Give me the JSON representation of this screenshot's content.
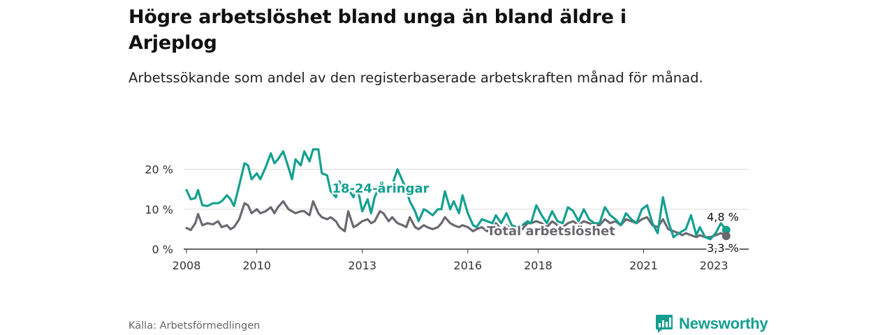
{
  "title": "Högre arbetslöshet bland unga än bland äldre i Arjeplog",
  "subtitle": "Arbetssökande som andel av den registerbaserade arbetskraften månad för månad.",
  "source": "Källa: Arbetsförmedlingen",
  "brand": "Newsworthy",
  "colors": {
    "youth": "#14a090",
    "total": "#6b6870",
    "grid": "#d9d9d9",
    "axis": "#333333",
    "brand": "#139e8f"
  },
  "chart_data": {
    "type": "line",
    "title": "Högre arbetslöshet bland unga än bland äldre i Arjeplog",
    "xlabel": "",
    "ylabel": "",
    "xlim": [
      2007.92,
      2023.99
    ],
    "ylim": [
      0,
      25
    ],
    "y_ticks": [
      0,
      10,
      20
    ],
    "y_tick_labels": [
      "0 %",
      "10 %",
      "20 %"
    ],
    "x_ticks": [
      2008,
      2010,
      2013,
      2016,
      2018,
      2021,
      2023
    ],
    "x_tick_labels": [
      "2008",
      "2010",
      "2013",
      "2016",
      "2018",
      "2021",
      "2023"
    ],
    "grid": true,
    "series": [
      {
        "name": "18-24-åringar",
        "label": "18-24-åringar",
        "color": "#14a090",
        "end_label": "4,8 %",
        "x": [
          2008.0,
          2008.12,
          2008.25,
          2008.33,
          2008.45,
          2008.6,
          2008.75,
          2008.9,
          2009.0,
          2009.15,
          2009.25,
          2009.35,
          2009.5,
          2009.65,
          2009.75,
          2009.85,
          2010.0,
          2010.1,
          2010.25,
          2010.4,
          2010.5,
          2010.6,
          2010.75,
          2010.9,
          2011.0,
          2011.1,
          2011.25,
          2011.35,
          2011.5,
          2011.6,
          2011.75,
          2011.85,
          2012.0,
          2012.1,
          2012.25,
          2012.35,
          2012.5,
          2012.6,
          2012.75,
          2012.85,
          2013.0,
          2013.15,
          2013.25,
          2013.35,
          2013.5,
          2013.6,
          2013.75,
          2013.85,
          2014.0,
          2014.15,
          2014.25,
          2014.35,
          2014.5,
          2014.6,
          2014.75,
          2014.85,
          2015.0,
          2015.15,
          2015.25,
          2015.35,
          2015.5,
          2015.6,
          2015.75,
          2015.85,
          2016.0,
          2016.15,
          2016.25,
          2016.4,
          2016.55,
          2016.7,
          2016.8,
          2016.95,
          2017.1,
          2017.25,
          2017.4,
          2017.55,
          2017.7,
          2017.8,
          2017.95,
          2018.1,
          2018.25,
          2018.4,
          2018.55,
          2018.7,
          2018.85,
          2019.0,
          2019.15,
          2019.3,
          2019.45,
          2019.6,
          2019.75,
          2019.9,
          2020.05,
          2020.2,
          2020.35,
          2020.5,
          2020.65,
          2020.8,
          2020.95,
          2021.1,
          2021.25,
          2021.4,
          2021.55,
          2021.7,
          2021.85,
          2022.0,
          2022.1,
          2022.2,
          2022.35,
          2022.5,
          2022.6,
          2022.75,
          2022.9,
          2023.05,
          2023.2,
          2023.35
        ],
        "y": [
          14.8,
          12.5,
          12.8,
          14.8,
          11.0,
          10.8,
          11.5,
          11.5,
          12.0,
          13.5,
          12.5,
          10.8,
          16.0,
          21.5,
          21.0,
          17.5,
          19.0,
          17.5,
          20.5,
          24.0,
          21.5,
          22.5,
          24.5,
          20.5,
          17.5,
          22.5,
          21.0,
          24.5,
          22.0,
          25.0,
          25.0,
          19.0,
          18.5,
          14.5,
          13.0,
          17.0,
          14.0,
          15.0,
          13.0,
          16.0,
          9.5,
          12.5,
          9.0,
          13.0,
          16.0,
          15.5,
          14.0,
          16.0,
          20.0,
          17.0,
          15.0,
          12.0,
          9.5,
          7.0,
          10.0,
          9.5,
          8.5,
          10.0,
          10.0,
          14.5,
          10.0,
          12.0,
          9.0,
          13.5,
          9.0,
          6.0,
          5.5,
          7.5,
          7.0,
          6.5,
          8.5,
          6.5,
          9.0,
          6.0,
          5.5,
          6.0,
          7.0,
          6.5,
          11.0,
          8.5,
          6.5,
          9.5,
          7.0,
          6.5,
          10.5,
          9.5,
          7.0,
          10.0,
          7.5,
          6.5,
          6.5,
          10.5,
          8.5,
          7.5,
          6.0,
          9.0,
          7.5,
          6.5,
          10.0,
          11.0,
          6.5,
          4.0,
          13.0,
          7.0,
          3.0,
          4.0,
          4.5,
          5.0,
          8.5,
          3.5,
          5.5,
          3.0,
          2.5,
          4.0,
          6.5,
          4.8
        ]
      },
      {
        "name": "Total arbetslöshet",
        "label": "Total arbetslöshet",
        "color": "#6b6870",
        "end_label": "3,3 %",
        "x": [
          2008.0,
          2008.12,
          2008.25,
          2008.33,
          2008.45,
          2008.6,
          2008.75,
          2008.9,
          2009.0,
          2009.15,
          2009.25,
          2009.35,
          2009.5,
          2009.65,
          2009.75,
          2009.85,
          2010.0,
          2010.1,
          2010.25,
          2010.4,
          2010.5,
          2010.6,
          2010.75,
          2010.9,
          2011.0,
          2011.1,
          2011.25,
          2011.35,
          2011.5,
          2011.6,
          2011.75,
          2011.85,
          2012.0,
          2012.1,
          2012.25,
          2012.35,
          2012.5,
          2012.6,
          2012.75,
          2012.85,
          2013.0,
          2013.15,
          2013.25,
          2013.35,
          2013.5,
          2013.6,
          2013.75,
          2013.85,
          2014.0,
          2014.15,
          2014.25,
          2014.35,
          2014.5,
          2014.6,
          2014.75,
          2014.85,
          2015.0,
          2015.15,
          2015.25,
          2015.35,
          2015.5,
          2015.6,
          2015.75,
          2015.85,
          2016.0,
          2016.15,
          2016.25,
          2016.4,
          2016.55,
          2016.7,
          2016.8,
          2016.95,
          2017.1,
          2017.25,
          2017.4,
          2017.55,
          2017.7,
          2017.8,
          2017.95,
          2018.1,
          2018.25,
          2018.4,
          2018.55,
          2018.7,
          2018.85,
          2019.0,
          2019.15,
          2019.3,
          2019.45,
          2019.6,
          2019.75,
          2019.9,
          2020.05,
          2020.2,
          2020.35,
          2020.5,
          2020.65,
          2020.8,
          2020.95,
          2021.1,
          2021.25,
          2021.4,
          2021.55,
          2021.7,
          2021.85,
          2022.0,
          2022.1,
          2022.2,
          2022.35,
          2022.5,
          2022.6,
          2022.75,
          2022.9,
          2023.05,
          2023.2,
          2023.35
        ],
        "y": [
          5.3,
          4.8,
          6.5,
          8.8,
          6.0,
          6.5,
          6.2,
          7.0,
          5.5,
          6.0,
          5.0,
          5.5,
          7.5,
          11.5,
          11.0,
          9.0,
          10.0,
          9.0,
          9.5,
          10.5,
          9.0,
          10.5,
          12.0,
          10.0,
          9.5,
          9.0,
          9.5,
          9.5,
          8.5,
          12.0,
          9.0,
          8.0,
          7.5,
          8.0,
          7.0,
          5.5,
          4.5,
          9.5,
          5.5,
          6.0,
          7.0,
          7.5,
          6.5,
          7.0,
          9.5,
          9.0,
          7.0,
          8.0,
          6.5,
          6.0,
          5.5,
          8.0,
          5.5,
          5.0,
          6.0,
          5.5,
          5.0,
          5.5,
          6.5,
          8.0,
          6.5,
          6.0,
          5.5,
          6.0,
          5.5,
          4.5,
          5.0,
          5.5,
          4.5,
          5.0,
          6.5,
          5.0,
          6.0,
          5.0,
          4.5,
          5.0,
          6.5,
          6.5,
          7.0,
          6.5,
          5.5,
          7.0,
          6.0,
          5.5,
          6.5,
          7.0,
          6.0,
          7.0,
          6.5,
          6.0,
          6.0,
          7.5,
          6.5,
          7.0,
          6.0,
          7.5,
          7.0,
          6.5,
          7.5,
          8.0,
          6.0,
          5.5,
          7.5,
          5.0,
          4.5,
          4.0,
          3.5,
          4.0,
          3.5,
          3.0,
          3.5,
          3.0,
          3.0,
          3.5,
          4.0,
          3.3
        ]
      }
    ]
  }
}
